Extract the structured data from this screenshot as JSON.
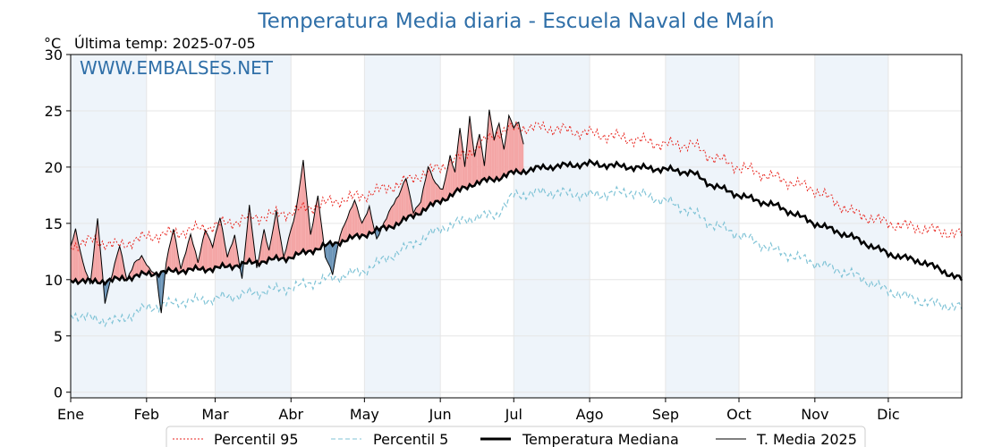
{
  "title": "Temperatura Media diaria - Escuela Naval de Maín",
  "unit_label": "°C",
  "last_temp_label": "Última temp: 2025-07-05",
  "watermark": "WWW.EMBALSES.NET",
  "colors": {
    "p95": "#e8231c",
    "p5": "#7fc3d6",
    "median": "#000000",
    "current": "#000000",
    "above_fill": "#f4a6a6",
    "below_fill": "#6c95b8",
    "band": "#eef4fa",
    "title": "#2f6fa8"
  },
  "chart_data": {
    "type": "line",
    "title": "Temperatura Media diaria - Escuela Naval de Maín",
    "ylabel": "°C",
    "ylim": [
      -0.5,
      30
    ],
    "yticks": [
      0,
      5,
      10,
      15,
      20,
      25,
      30
    ],
    "xlim": [
      1,
      365
    ],
    "month_labels": [
      "Ene",
      "Feb",
      "Mar",
      "Abr",
      "May",
      "Jun",
      "Jul",
      "Ago",
      "Sep",
      "Oct",
      "Nov",
      "Dic"
    ],
    "month_start_days": [
      1,
      32,
      60,
      91,
      121,
      152,
      182,
      213,
      244,
      274,
      305,
      335
    ],
    "grid": true,
    "legend_position": "bottom",
    "series": [
      {
        "name": "Percentil 95",
        "style": "dotted",
        "anchors_day": [
          1,
          10,
          20,
          32,
          45,
          60,
          75,
          91,
          105,
          121,
          135,
          152,
          165,
          175,
          182,
          195,
          213,
          230,
          244,
          255,
          262,
          274,
          290,
          305,
          320,
          335,
          350,
          365
        ],
        "anchors_value": [
          13.0,
          13.5,
          13.0,
          13.8,
          14.2,
          14.8,
          15.5,
          16.0,
          16.8,
          17.5,
          18.5,
          20.0,
          21.5,
          23.0,
          23.5,
          23.5,
          23.0,
          22.5,
          22.0,
          22.0,
          21.0,
          20.0,
          19.0,
          18.0,
          16.0,
          15.0,
          14.5,
          14.0
        ],
        "noise": 0.7
      },
      {
        "name": "Percentil 5",
        "style": "dashed",
        "anchors_day": [
          1,
          10,
          20,
          32,
          45,
          60,
          75,
          91,
          105,
          121,
          135,
          152,
          165,
          175,
          182,
          195,
          213,
          230,
          244,
          255,
          262,
          274,
          290,
          305,
          320,
          335,
          350,
          365
        ],
        "anchors_value": [
          7.0,
          6.5,
          6.3,
          7.5,
          8.0,
          8.3,
          8.8,
          9.3,
          10.0,
          10.8,
          12.5,
          14.5,
          15.5,
          15.8,
          17.5,
          17.8,
          17.5,
          17.8,
          17.0,
          16.0,
          15.0,
          14.0,
          12.5,
          11.5,
          10.5,
          9.0,
          8.0,
          7.5
        ],
        "noise": 0.6
      },
      {
        "name": "Temperatura Mediana",
        "style": "solid-thick",
        "anchors_day": [
          1,
          10,
          20,
          32,
          45,
          60,
          75,
          91,
          105,
          121,
          135,
          152,
          165,
          175,
          182,
          195,
          213,
          230,
          244,
          255,
          262,
          274,
          290,
          305,
          320,
          335,
          350,
          365
        ],
        "anchors_value": [
          10.0,
          9.8,
          10.0,
          10.5,
          10.8,
          11.0,
          11.5,
          12.0,
          13.0,
          14.0,
          15.0,
          17.0,
          18.5,
          19.0,
          19.5,
          20.0,
          20.3,
          20.0,
          19.8,
          19.5,
          18.5,
          17.5,
          16.5,
          15.0,
          13.8,
          12.3,
          11.5,
          10.0
        ],
        "noise": 0.35
      },
      {
        "name": "T. Media 2025",
        "style": "solid-thin",
        "anchors_day": [
          1,
          3,
          6,
          9,
          12,
          15,
          18,
          21,
          24,
          27,
          30,
          33,
          36,
          38,
          40,
          43,
          46,
          50,
          53,
          56,
          59,
          62,
          65,
          68,
          71,
          74,
          77,
          80,
          82,
          85,
          88,
          91,
          93,
          96,
          99,
          102,
          105,
          108,
          111,
          114,
          117,
          120,
          123,
          126,
          129,
          132,
          135,
          138,
          141,
          144,
          147,
          150,
          153,
          156,
          158,
          160,
          162,
          164,
          166,
          168,
          170,
          172,
          174,
          176,
          178,
          180,
          182,
          184,
          186
        ],
        "anchors_value": [
          13.0,
          14.5,
          11.5,
          9.5,
          15.5,
          8.0,
          10.5,
          13.0,
          10.0,
          11.5,
          12.0,
          11.0,
          10.5,
          7.0,
          11.5,
          14.5,
          11.0,
          14.0,
          11.5,
          14.5,
          13.0,
          15.5,
          12.0,
          14.0,
          10.0,
          16.5,
          11.0,
          14.5,
          12.5,
          16.0,
          12.0,
          14.5,
          16.0,
          20.5,
          14.0,
          17.5,
          12.0,
          10.5,
          14.0,
          15.5,
          17.0,
          15.0,
          16.5,
          13.5,
          15.0,
          16.5,
          17.5,
          19.0,
          16.0,
          17.0,
          20.0,
          18.5,
          18.0,
          21.0,
          19.5,
          23.5,
          20.0,
          24.5,
          21.0,
          23.0,
          20.0,
          25.0,
          22.5,
          24.0,
          21.5,
          24.5,
          23.5,
          24.0,
          22.0
        ],
        "noise": 0.15
      }
    ]
  },
  "legend": [
    {
      "label": "Percentil 95"
    },
    {
      "label": "Percentil 5"
    },
    {
      "label": "Temperatura Mediana"
    },
    {
      "label": "T. Media 2025"
    }
  ]
}
